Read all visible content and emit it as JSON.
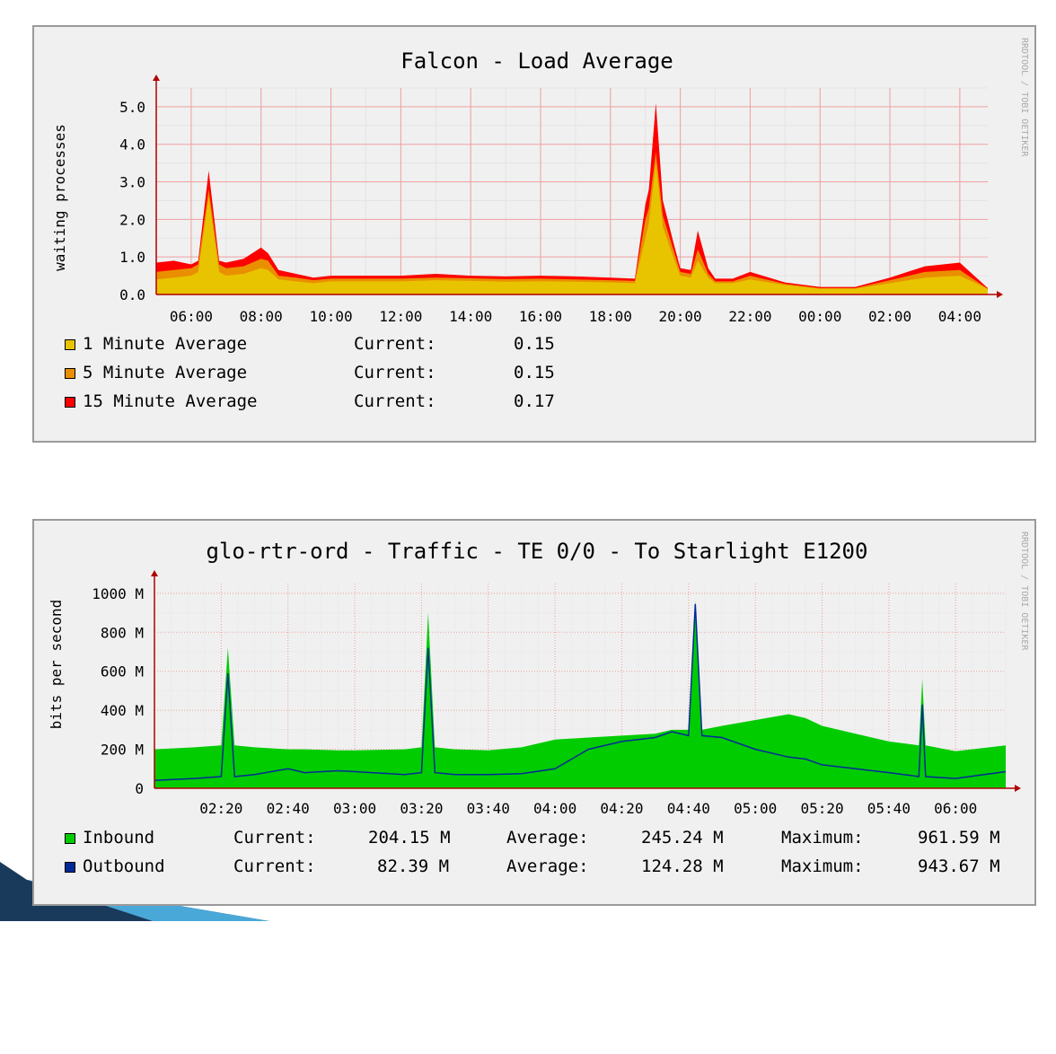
{
  "chart_data": [
    {
      "type": "area",
      "title": "Falcon - Load Average",
      "ylabel": "waiting processes",
      "xlabel": "",
      "ylim": [
        0,
        5.5
      ],
      "y_ticks": [
        "0.0",
        "1.0",
        "2.0",
        "3.0",
        "4.0",
        "5.0"
      ],
      "x_ticks": [
        "06:00",
        "08:00",
        "10:00",
        "12:00",
        "14:00",
        "16:00",
        "18:00",
        "20:00",
        "22:00",
        "00:00",
        "02:00",
        "04:00"
      ],
      "x_hours": [
        5.0,
        5.5,
        6.0,
        6.2,
        6.5,
        6.8,
        7.0,
        7.5,
        8.0,
        8.2,
        8.5,
        9.0,
        9.5,
        10.0,
        11.0,
        12.0,
        13.0,
        14.0,
        15.0,
        16.0,
        17.0,
        18.0,
        18.7,
        19.0,
        19.1,
        19.3,
        19.5,
        19.8,
        20.0,
        20.3,
        20.5,
        20.8,
        21.0,
        21.5,
        22.0,
        23.0,
        24.0,
        25.0,
        26.0,
        27.0,
        28.0,
        28.8
      ],
      "grid": true,
      "legend_position": "bottom",
      "colors": {
        "one_min": "#e8c400",
        "five_min": "#ea8f00",
        "fifteen_min": "#ff0000"
      },
      "series": [
        {
          "name": "1 Minute Average",
          "current": "0.15",
          "values": [
            0.4,
            0.45,
            0.5,
            0.6,
            2.6,
            0.6,
            0.5,
            0.55,
            0.7,
            0.65,
            0.4,
            0.35,
            0.3,
            0.35,
            0.35,
            0.35,
            0.38,
            0.36,
            0.34,
            0.35,
            0.34,
            0.32,
            0.3,
            1.5,
            1.9,
            3.5,
            1.8,
            1.0,
            0.5,
            0.45,
            0.9,
            0.45,
            0.3,
            0.3,
            0.4,
            0.25,
            0.15,
            0.15,
            0.3,
            0.45,
            0.5,
            0.15
          ]
        },
        {
          "name": "5 Minute Average",
          "current": "0.15",
          "values": [
            0.6,
            0.65,
            0.7,
            0.8,
            2.8,
            0.8,
            0.7,
            0.75,
            0.95,
            0.9,
            0.5,
            0.45,
            0.38,
            0.42,
            0.42,
            0.42,
            0.45,
            0.43,
            0.41,
            0.42,
            0.4,
            0.38,
            0.36,
            2.0,
            2.3,
            3.8,
            2.1,
            1.2,
            0.6,
            0.55,
            1.2,
            0.55,
            0.35,
            0.35,
            0.5,
            0.28,
            0.17,
            0.17,
            0.38,
            0.6,
            0.65,
            0.15
          ]
        },
        {
          "name": "15 Minute Average",
          "current": "0.17",
          "values": [
            0.85,
            0.9,
            0.8,
            0.9,
            3.3,
            0.9,
            0.85,
            0.95,
            1.25,
            1.1,
            0.65,
            0.55,
            0.45,
            0.5,
            0.5,
            0.5,
            0.55,
            0.5,
            0.48,
            0.5,
            0.48,
            0.45,
            0.42,
            2.4,
            2.8,
            5.1,
            2.5,
            1.4,
            0.7,
            0.65,
            1.7,
            0.7,
            0.42,
            0.42,
            0.6,
            0.32,
            0.2,
            0.2,
            0.45,
            0.75,
            0.85,
            0.17
          ]
        }
      ]
    },
    {
      "type": "area",
      "title": "glo-rtr-ord - Traffic - TE 0/0 - To Starlight E1200",
      "ylabel": "bits per second",
      "xlabel": "",
      "ylim": [
        0,
        1050
      ],
      "y_ticks": [
        "0",
        "200 M",
        "400 M",
        "600 M",
        "800 M",
        "1000 M"
      ],
      "x_ticks": [
        "02:20",
        "02:40",
        "03:00",
        "03:20",
        "03:40",
        "04:00",
        "04:20",
        "04:40",
        "05:00",
        "05:20",
        "05:40",
        "06:00"
      ],
      "x_minutes": [
        0,
        12,
        20,
        22,
        24,
        30,
        40,
        45,
        55,
        60,
        75,
        80,
        82,
        84,
        90,
        100,
        110,
        120,
        130,
        140,
        150,
        155,
        160,
        162,
        164,
        170,
        180,
        190,
        195,
        200,
        210,
        220,
        229,
        230,
        231,
        240,
        255
      ],
      "grid": true,
      "legend_position": "bottom",
      "colors": {
        "inbound": "#00cc00",
        "outbound": "#002a97"
      },
      "series": [
        {
          "name": "Inbound",
          "current": "204.15 M",
          "average": "245.24 M",
          "maximum": "961.59 M",
          "values": [
            200,
            210,
            220,
            720,
            220,
            210,
            200,
            200,
            195,
            195,
            200,
            210,
            900,
            210,
            200,
            195,
            210,
            250,
            260,
            270,
            280,
            300,
            300,
            960,
            300,
            320,
            350,
            380,
            360,
            320,
            280,
            240,
            220,
            560,
            220,
            190,
            220
          ]
        },
        {
          "name": "Outbound",
          "current": "82.39 M",
          "average": "124.28 M",
          "maximum": "943.67 M",
          "values": [
            40,
            50,
            60,
            590,
            60,
            70,
            100,
            80,
            90,
            85,
            70,
            80,
            720,
            80,
            70,
            70,
            75,
            100,
            200,
            240,
            260,
            290,
            270,
            945,
            270,
            260,
            200,
            160,
            150,
            120,
            100,
            80,
            60,
            430,
            60,
            50,
            85
          ]
        }
      ]
    }
  ],
  "watermark": "RRDTOOL / TOBI OETIKER",
  "legend_current_label": "Current:",
  "legend_average_label": "Average:",
  "legend_maximum_label": "Maximum:"
}
